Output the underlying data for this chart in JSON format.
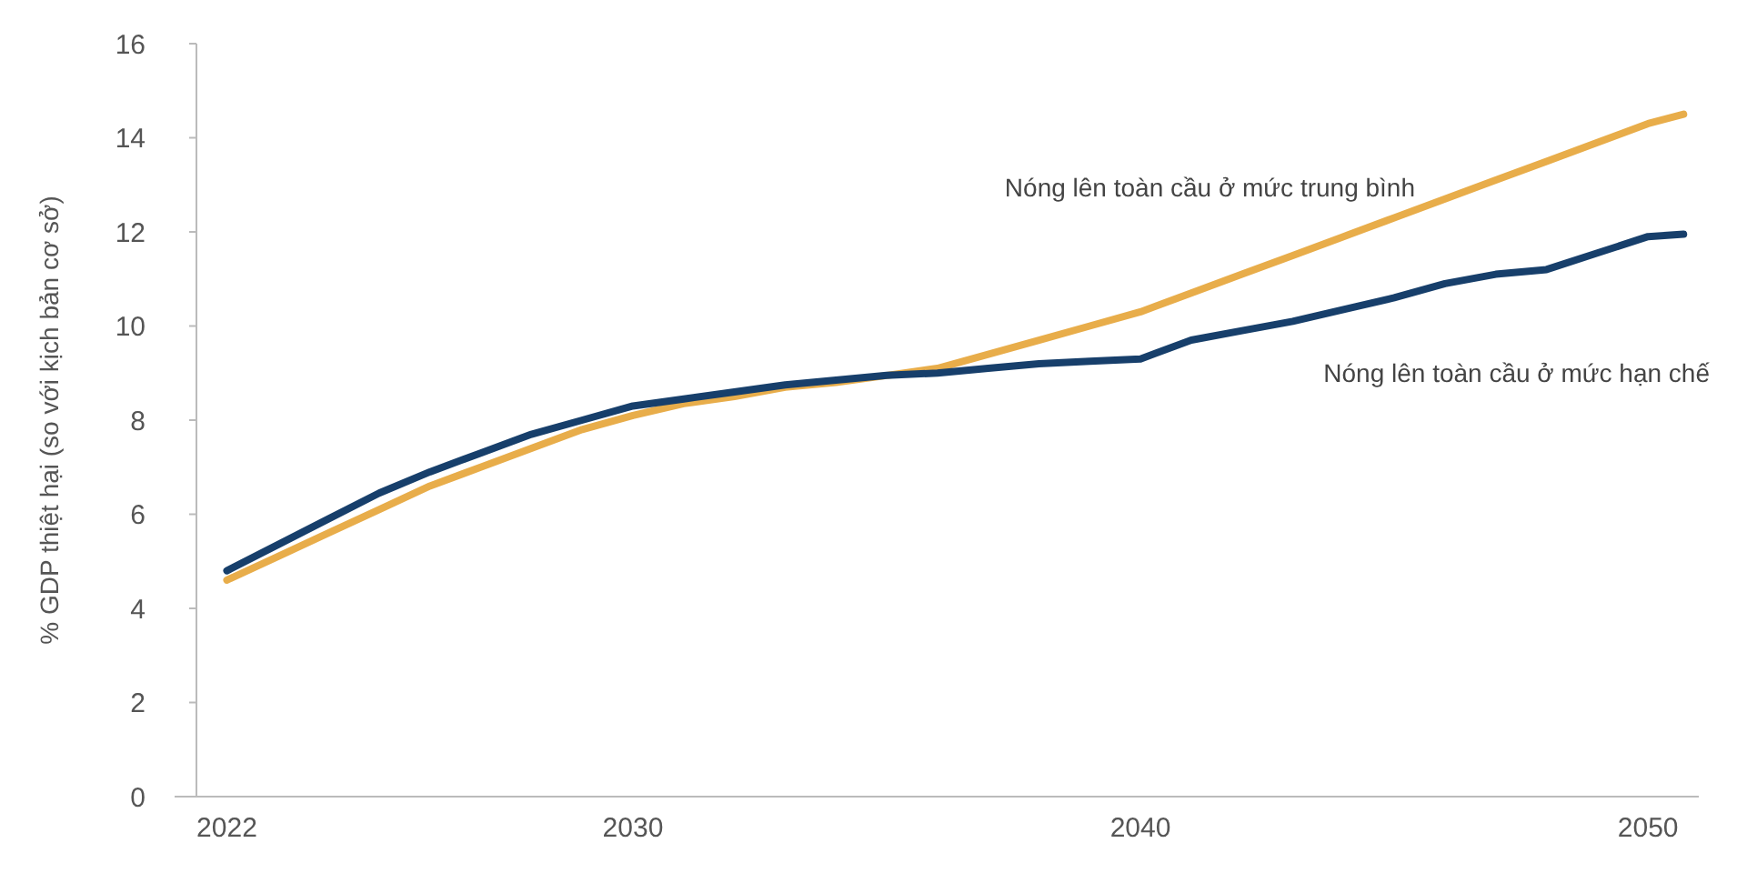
{
  "chart_data": {
    "type": "line",
    "ylabel": "% GDP thiệt hại (so với kịch bản cơ sở)",
    "xlim": [
      2021.4,
      2051
    ],
    "xticks": [
      2022,
      2030,
      2040,
      2050
    ],
    "ylim": [
      0,
      16
    ],
    "yticks": [
      0,
      2,
      4,
      6,
      8,
      10,
      12,
      14,
      16
    ],
    "grid": false,
    "x": [
      2022,
      2023,
      2024,
      2025,
      2026,
      2027,
      2028,
      2029,
      2030,
      2031,
      2032,
      2033,
      2034,
      2035,
      2036,
      2037,
      2038,
      2039,
      2040,
      2041,
      2042,
      2043,
      2044,
      2045,
      2046,
      2047,
      2048,
      2049,
      2050,
      2050.7
    ],
    "series": [
      {
        "name": "Nóng lên toàn cầu ở mức trung bình",
        "color": "#e8ad4a",
        "values": [
          4.6,
          5.1,
          5.6,
          6.1,
          6.6,
          7.0,
          7.4,
          7.8,
          8.1,
          8.35,
          8.5,
          8.7,
          8.8,
          8.95,
          9.1,
          9.4,
          9.7,
          10.0,
          10.3,
          10.7,
          11.1,
          11.5,
          11.9,
          12.3,
          12.7,
          13.1,
          13.5,
          13.9,
          14.3,
          14.5
        ]
      },
      {
        "name": "Nóng lên toàn cầu ở mức hạn chế",
        "color": "#173f6b",
        "values": [
          4.8,
          5.35,
          5.9,
          6.45,
          6.9,
          7.3,
          7.7,
          8.0,
          8.3,
          8.45,
          8.6,
          8.75,
          8.85,
          8.95,
          9.0,
          9.1,
          9.2,
          9.25,
          9.3,
          9.7,
          9.9,
          10.1,
          10.35,
          10.6,
          10.9,
          11.1,
          11.2,
          11.55,
          11.9,
          11.95
        ]
      }
    ]
  }
}
